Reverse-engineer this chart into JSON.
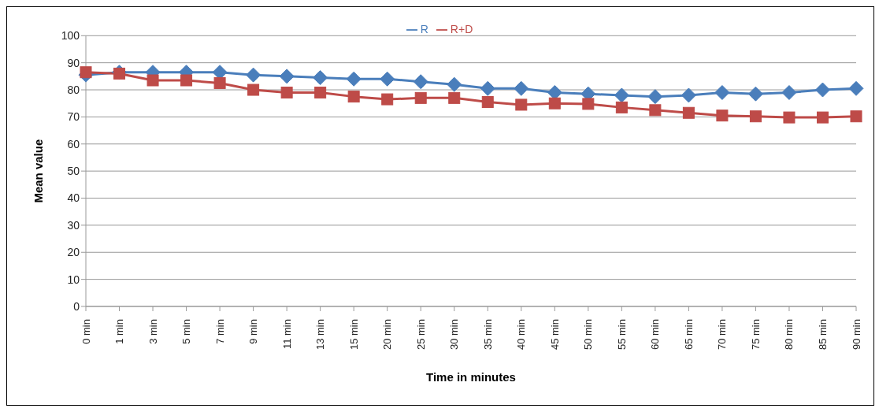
{
  "chart_data": {
    "type": "line",
    "xlabel": "Time in minutes",
    "ylabel": "Mean value",
    "categories": [
      "0 min",
      "1 min",
      "3 min",
      "5 min",
      "7 min",
      "9 min",
      "11 min",
      "13 min",
      "15 min",
      "20 min",
      "25 min",
      "30 min",
      "35 min",
      "40 min",
      "45 min",
      "50 min",
      "55 min",
      "60 min",
      "65 min",
      "70 min",
      "75 min",
      "80 min",
      "85 min",
      "90 min"
    ],
    "series": [
      {
        "name": "R",
        "color": "#4a7ebb",
        "marker": "diamond",
        "values": [
          85.5,
          86.5,
          86.5,
          86.5,
          86.5,
          85.5,
          85,
          84.5,
          84,
          84,
          83,
          82,
          80.5,
          80.5,
          79,
          78.5,
          78,
          77.5,
          78,
          79,
          78.5,
          79,
          80,
          80.5
        ]
      },
      {
        "name": "R+D",
        "color": "#be4b48",
        "marker": "square",
        "values": [
          86.5,
          86,
          83.5,
          83.5,
          82.5,
          80,
          79,
          79,
          77.5,
          76.5,
          77,
          77,
          75.5,
          74.5,
          75,
          74.8,
          73.5,
          72.5,
          71.5,
          70.5,
          70.2,
          69.8,
          69.8,
          70.2
        ]
      }
    ],
    "ylim": [
      0,
      100
    ],
    "yticks": [
      0,
      10,
      20,
      30,
      40,
      50,
      60,
      70,
      80,
      90,
      100
    ],
    "grid": "y",
    "legend": "top"
  }
}
